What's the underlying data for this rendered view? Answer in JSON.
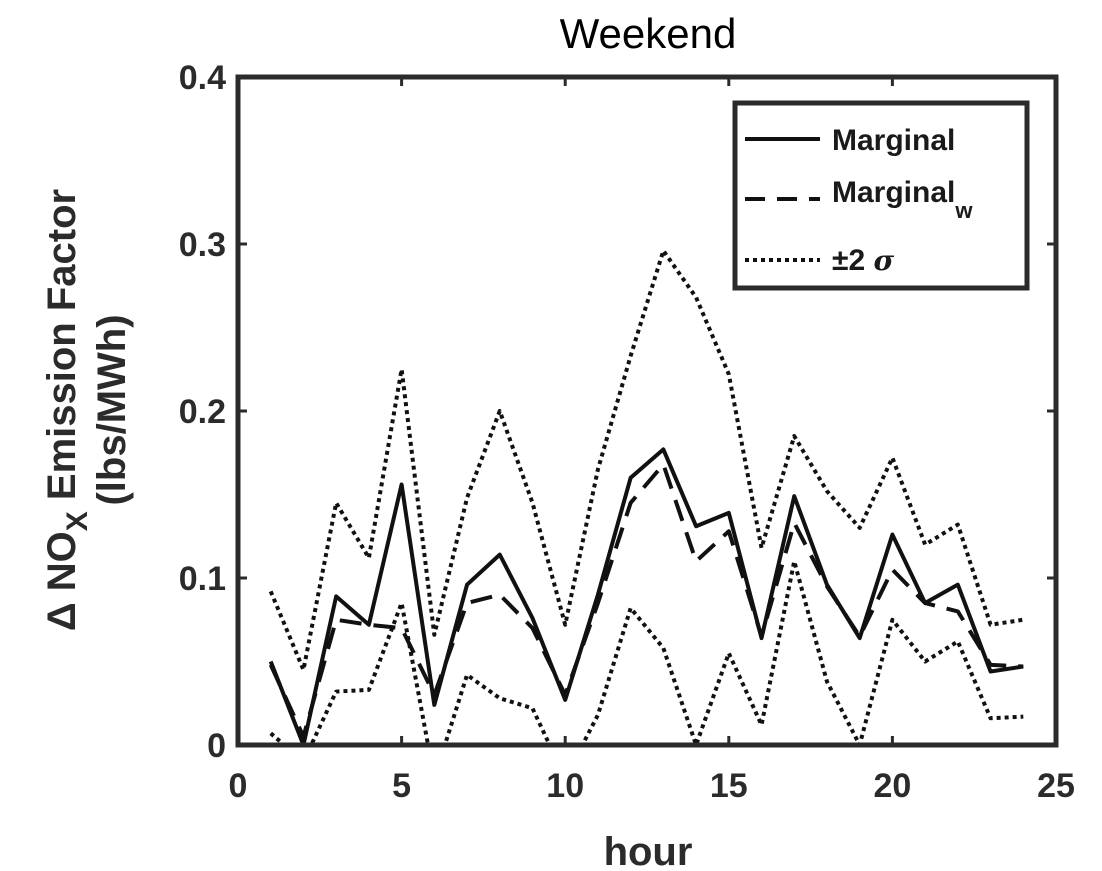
{
  "chart_data": {
    "type": "line",
    "title": "Weekend",
    "xlabel": "hour",
    "ylabel_prefix": "Δ NO",
    "ylabel_sub": "X",
    "ylabel_suffix": " Emission Factor",
    "ylabel_line2": "(lbs/MWh)",
    "xlim": [
      0,
      25
    ],
    "ylim": [
      0,
      0.4
    ],
    "xticks": [
      0,
      5,
      10,
      15,
      20,
      25
    ],
    "xtick_labels": [
      "0",
      "5",
      "10",
      "15",
      "20",
      "25"
    ],
    "yticks": [
      0,
      0.1,
      0.2,
      0.3,
      0.4
    ],
    "ytick_labels": [
      "0",
      "0.1",
      "0.2",
      "0.3",
      "0.4"
    ],
    "grid": false,
    "legend_position": "top-right",
    "x": [
      1,
      2,
      3,
      4,
      5,
      6,
      7,
      8,
      9,
      10,
      11,
      12,
      13,
      14,
      15,
      16,
      17,
      18,
      19,
      20,
      21,
      22,
      23,
      24
    ],
    "series": [
      {
        "name": "Marginal",
        "style": "solid",
        "values": [
          0.05,
          0.0,
          0.089,
          0.072,
          0.156,
          0.024,
          0.096,
          0.114,
          0.076,
          0.027,
          0.09,
          0.16,
          0.177,
          0.131,
          0.139,
          0.064,
          0.149,
          0.096,
          0.064,
          0.126,
          0.085,
          0.096,
          0.044,
          0.047
        ]
      },
      {
        "name": "Marginal",
        "name_sub": "w",
        "style": "dashed",
        "values": [
          0.048,
          0.005,
          0.075,
          0.072,
          0.07,
          0.03,
          0.085,
          0.09,
          0.07,
          0.03,
          0.085,
          0.145,
          0.168,
          0.11,
          0.128,
          0.065,
          0.133,
          0.095,
          0.065,
          0.105,
          0.085,
          0.08,
          0.048,
          0.047
        ]
      },
      {
        "name": "±2 σ",
        "style": "dotted",
        "role": "upper",
        "values": [
          0.092,
          0.045,
          0.145,
          0.112,
          0.225,
          0.066,
          0.148,
          0.2,
          0.145,
          0.072,
          0.165,
          0.233,
          0.296,
          0.268,
          0.222,
          0.118,
          0.185,
          0.152,
          0.13,
          0.172,
          0.12,
          0.132,
          0.072,
          0.075
        ]
      },
      {
        "name": "±2 σ",
        "style": "dotted",
        "role": "lower",
        "values": [
          0.007,
          -0.01,
          0.032,
          0.033,
          0.085,
          -0.02,
          0.042,
          0.028,
          0.022,
          -0.02,
          0.018,
          0.082,
          0.058,
          0.0,
          0.055,
          0.012,
          0.11,
          0.038,
          0.0,
          0.075,
          0.05,
          0.062,
          0.016,
          0.017
        ]
      }
    ],
    "legend": [
      {
        "label": "Marginal",
        "sub": "",
        "style": "solid"
      },
      {
        "label": "Marginal",
        "sub": "w",
        "style": "dashed"
      },
      {
        "label": "±2 ",
        "sub": "",
        "sigma": "σ",
        "style": "dotted"
      }
    ]
  }
}
